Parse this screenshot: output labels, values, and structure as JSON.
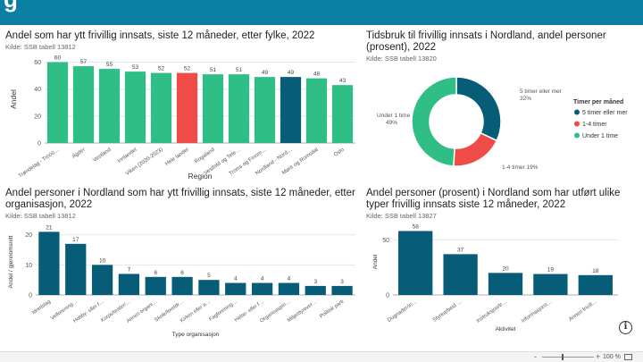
{
  "zoom": {
    "minus": "-",
    "plus": "+",
    "level": "100 %"
  },
  "info_glyph": "i",
  "colors": {
    "green": "#2fbf86",
    "red": "#ef4b47",
    "dark_teal": "#075c77",
    "teal": "#0b7ea4"
  },
  "chart_data": [
    {
      "type": "bar",
      "title": "Andel som har ytt frivillig innsats, siste 12 måneder, etter fylke, 2022",
      "source": "Kilde: SSB tabell 13812",
      "xlabel": "Region",
      "ylabel": "Andel",
      "ylim": [
        0,
        65
      ],
      "yticks": [
        0,
        20,
        40,
        60
      ],
      "categories": [
        "Trøndelag - Trööö…",
        "Agder",
        "Vestland",
        "Innlandet",
        "Viken (2020-2023)",
        "Hele landet",
        "Rogaland",
        "Vestfold og Tele…",
        "Troms og Finnm…",
        "Nordland - Nord…",
        "Møre og Romsdal",
        "Oslo"
      ],
      "values": [
        60,
        57,
        55,
        53,
        52,
        52,
        51,
        51,
        49,
        49,
        48,
        43
      ],
      "highlight": {
        "Hele landet": "#ef4b47",
        "Nordland - Nord…": "#075c77"
      }
    },
    {
      "type": "pie",
      "title": "Tidsbruk til frivillig innsats i Nordland, andel personer (prosent), 2022",
      "source": "Kilde: SSB tabell 13820",
      "legend_title": "Timer per måned",
      "legend_position": "right",
      "slices": [
        {
          "name": "5 timer eller mer",
          "value": 32,
          "label": "5 timer eller mer",
          "pct": "32%",
          "color": "#075c77"
        },
        {
          "name": "1-4 timer",
          "value": 19,
          "label": "1-4 timer 19%",
          "color": "#ef4b47"
        },
        {
          "name": "Under 1 time",
          "value": 49,
          "label": "Under 1 time",
          "pct": "49%",
          "color": "#2fbf86"
        }
      ]
    },
    {
      "type": "bar",
      "title": "Andel personer i Nordland som har ytt frivillig innsats, siste 12 måneder, etter organisasjon, 2022",
      "source": "Kilde: SSB tabell 13812",
      "xlabel": "Type organisasjon",
      "ylabel": "Andel / gjennomsnitt",
      "ylim": [
        0,
        22
      ],
      "yticks": [
        0,
        10,
        20
      ],
      "categories": [
        "Idrettslag",
        "Velforening…",
        "Hobby- eller f…",
        "Korps/teater/…",
        "Annen organi…",
        "Skole/foreldr…",
        "Kirken eller a…",
        "Fagforening…",
        "Helse- eller f…",
        "Organisasjon…",
        "Miljø/dyrever…",
        "Politisk parti"
      ],
      "values": [
        21,
        17,
        10,
        7,
        6,
        6,
        5,
        4,
        4,
        4,
        3,
        3
      ],
      "color": "#075c77"
    },
    {
      "type": "bar",
      "title": "Andel personer (prosent) i Nordland som har utført ulike typer frivillig innsats siste 12 måneder, 2022",
      "source": "Kilde: SSB tabell 13827",
      "xlabel": "Aktivitet",
      "ylabel": "Andel",
      "ylim": [
        0,
        60
      ],
      "yticks": [
        0,
        50
      ],
      "categories": [
        "Dugnader/in…",
        "Styrearbeid …",
        "Instruksjon/tr…",
        "Informasjons…",
        "Annen frivill…"
      ],
      "values": [
        58,
        37,
        20,
        19,
        18
      ],
      "color": "#075c77"
    }
  ]
}
